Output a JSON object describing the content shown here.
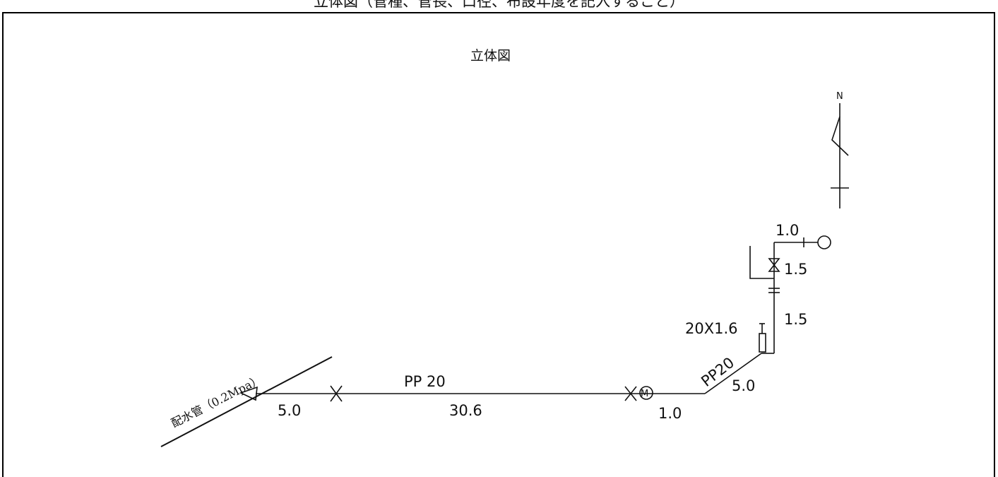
{
  "page": {
    "top_caption": "立体図（管種、管長、口径、布設年度を記入すること）",
    "diagram_title": "立体図"
  },
  "compass": {
    "north_label": "N"
  },
  "main_pipe": {
    "label": "配水管（0.2Mpa）"
  },
  "segments": {
    "first_length": "5.0",
    "pipe_type_main": "PP 20",
    "main_length": "30.6",
    "meter_length": "1.0",
    "pipe_type_diagonal": "PP20",
    "diagonal_length": "5.0",
    "fitting_size": "20X1.6",
    "riser_length_lower": "1.5",
    "riser_length_upper": "1.5",
    "faucet_length": "1.0"
  },
  "colors": {
    "line": "#111111",
    "background": "#ffffff"
  }
}
